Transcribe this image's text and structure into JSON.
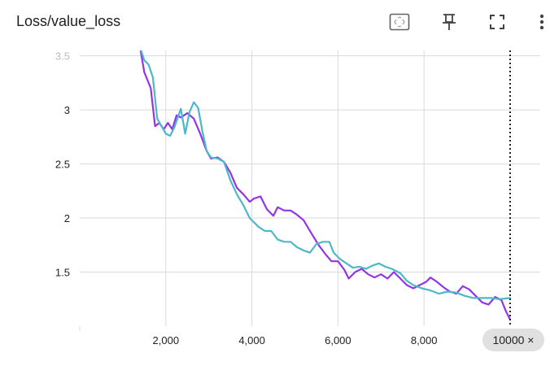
{
  "header": {
    "title": "Loss/value_loss",
    "icons": [
      "fit-domain-icon",
      "pin-icon",
      "fullscreen-icon",
      "more-vert-icon"
    ]
  },
  "colors": {
    "series1": "#9334e6",
    "series2": "#4cb8c9",
    "grid": "#dadada",
    "hover_line": "#202124",
    "badge_bg": "#e0e0e0"
  },
  "hover": {
    "label": "10000 ×",
    "x": 10000
  },
  "chart_data": {
    "type": "line",
    "title": "Loss/value_loss",
    "xlabel": "",
    "ylabel": "",
    "xlim": [
      0,
      10700
    ],
    "ylim": [
      1.0,
      3.55
    ],
    "x_ticks": [
      2000,
      4000,
      6000,
      8000
    ],
    "x_tick_labels": [
      "2,000",
      "4,000",
      "6,000",
      "8,000"
    ],
    "y_ticks": [
      1.5,
      2,
      2.5,
      3,
      3.5
    ],
    "y_tick_labels": [
      "1.5",
      "2",
      "2.5",
      "3",
      "3.5"
    ],
    "grid": true,
    "series": [
      {
        "color": "#9334e6",
        "points": [
          [
            1400,
            3.58
          ],
          [
            1500,
            3.35
          ],
          [
            1650,
            3.2
          ],
          [
            1750,
            2.85
          ],
          [
            1850,
            2.88
          ],
          [
            1950,
            2.82
          ],
          [
            2050,
            2.88
          ],
          [
            2150,
            2.82
          ],
          [
            2250,
            2.95
          ],
          [
            2350,
            2.93
          ],
          [
            2500,
            2.97
          ],
          [
            2650,
            2.92
          ],
          [
            2800,
            2.78
          ],
          [
            2950,
            2.62
          ],
          [
            3050,
            2.55
          ],
          [
            3200,
            2.56
          ],
          [
            3350,
            2.52
          ],
          [
            3500,
            2.42
          ],
          [
            3650,
            2.28
          ],
          [
            3800,
            2.22
          ],
          [
            3950,
            2.15
          ],
          [
            4050,
            2.18
          ],
          [
            4200,
            2.2
          ],
          [
            4350,
            2.08
          ],
          [
            4500,
            2.02
          ],
          [
            4600,
            2.1
          ],
          [
            4750,
            2.07
          ],
          [
            4900,
            2.07
          ],
          [
            5050,
            2.03
          ],
          [
            5200,
            1.98
          ],
          [
            5350,
            1.88
          ],
          [
            5550,
            1.75
          ],
          [
            5700,
            1.67
          ],
          [
            5850,
            1.6
          ],
          [
            6000,
            1.6
          ],
          [
            6150,
            1.52
          ],
          [
            6250,
            1.44
          ],
          [
            6400,
            1.5
          ],
          [
            6550,
            1.53
          ],
          [
            6700,
            1.48
          ],
          [
            6850,
            1.45
          ],
          [
            7000,
            1.48
          ],
          [
            7150,
            1.44
          ],
          [
            7300,
            1.5
          ],
          [
            7450,
            1.44
          ],
          [
            7600,
            1.38
          ],
          [
            7750,
            1.35
          ],
          [
            7900,
            1.38
          ],
          [
            8050,
            1.41
          ],
          [
            8150,
            1.45
          ],
          [
            8300,
            1.41
          ],
          [
            8450,
            1.36
          ],
          [
            8600,
            1.32
          ],
          [
            8750,
            1.3
          ],
          [
            8900,
            1.37
          ],
          [
            9050,
            1.34
          ],
          [
            9200,
            1.28
          ],
          [
            9350,
            1.22
          ],
          [
            9500,
            1.2
          ],
          [
            9650,
            1.27
          ],
          [
            9800,
            1.24
          ],
          [
            9900,
            1.14
          ],
          [
            10000,
            1.06
          ]
        ]
      },
      {
        "color": "#4cb8c9",
        "points": [
          [
            1400,
            3.58
          ],
          [
            1500,
            3.46
          ],
          [
            1600,
            3.42
          ],
          [
            1700,
            3.3
          ],
          [
            1800,
            2.92
          ],
          [
            1900,
            2.85
          ],
          [
            2000,
            2.78
          ],
          [
            2100,
            2.76
          ],
          [
            2200,
            2.84
          ],
          [
            2350,
            3.01
          ],
          [
            2450,
            2.78
          ],
          [
            2550,
            2.98
          ],
          [
            2650,
            3.07
          ],
          [
            2750,
            3.02
          ],
          [
            2850,
            2.8
          ],
          [
            2950,
            2.62
          ],
          [
            3050,
            2.56
          ],
          [
            3200,
            2.55
          ],
          [
            3350,
            2.52
          ],
          [
            3500,
            2.35
          ],
          [
            3650,
            2.22
          ],
          [
            3800,
            2.12
          ],
          [
            3950,
            2.0
          ],
          [
            4150,
            1.92
          ],
          [
            4300,
            1.88
          ],
          [
            4450,
            1.88
          ],
          [
            4600,
            1.8
          ],
          [
            4750,
            1.78
          ],
          [
            4900,
            1.78
          ],
          [
            5050,
            1.73
          ],
          [
            5200,
            1.7
          ],
          [
            5350,
            1.68
          ],
          [
            5500,
            1.76
          ],
          [
            5650,
            1.78
          ],
          [
            5800,
            1.78
          ],
          [
            5900,
            1.68
          ],
          [
            6050,
            1.62
          ],
          [
            6200,
            1.58
          ],
          [
            6350,
            1.54
          ],
          [
            6500,
            1.55
          ],
          [
            6650,
            1.53
          ],
          [
            6800,
            1.56
          ],
          [
            6950,
            1.58
          ],
          [
            7100,
            1.55
          ],
          [
            7250,
            1.53
          ],
          [
            7450,
            1.49
          ],
          [
            7600,
            1.42
          ],
          [
            7750,
            1.38
          ],
          [
            7950,
            1.35
          ],
          [
            8150,
            1.33
          ],
          [
            8350,
            1.3
          ],
          [
            8550,
            1.32
          ],
          [
            8750,
            1.31
          ],
          [
            8950,
            1.28
          ],
          [
            9150,
            1.26
          ],
          [
            9350,
            1.26
          ],
          [
            9550,
            1.26
          ],
          [
            9750,
            1.25
          ],
          [
            10000,
            1.26
          ]
        ]
      }
    ]
  }
}
